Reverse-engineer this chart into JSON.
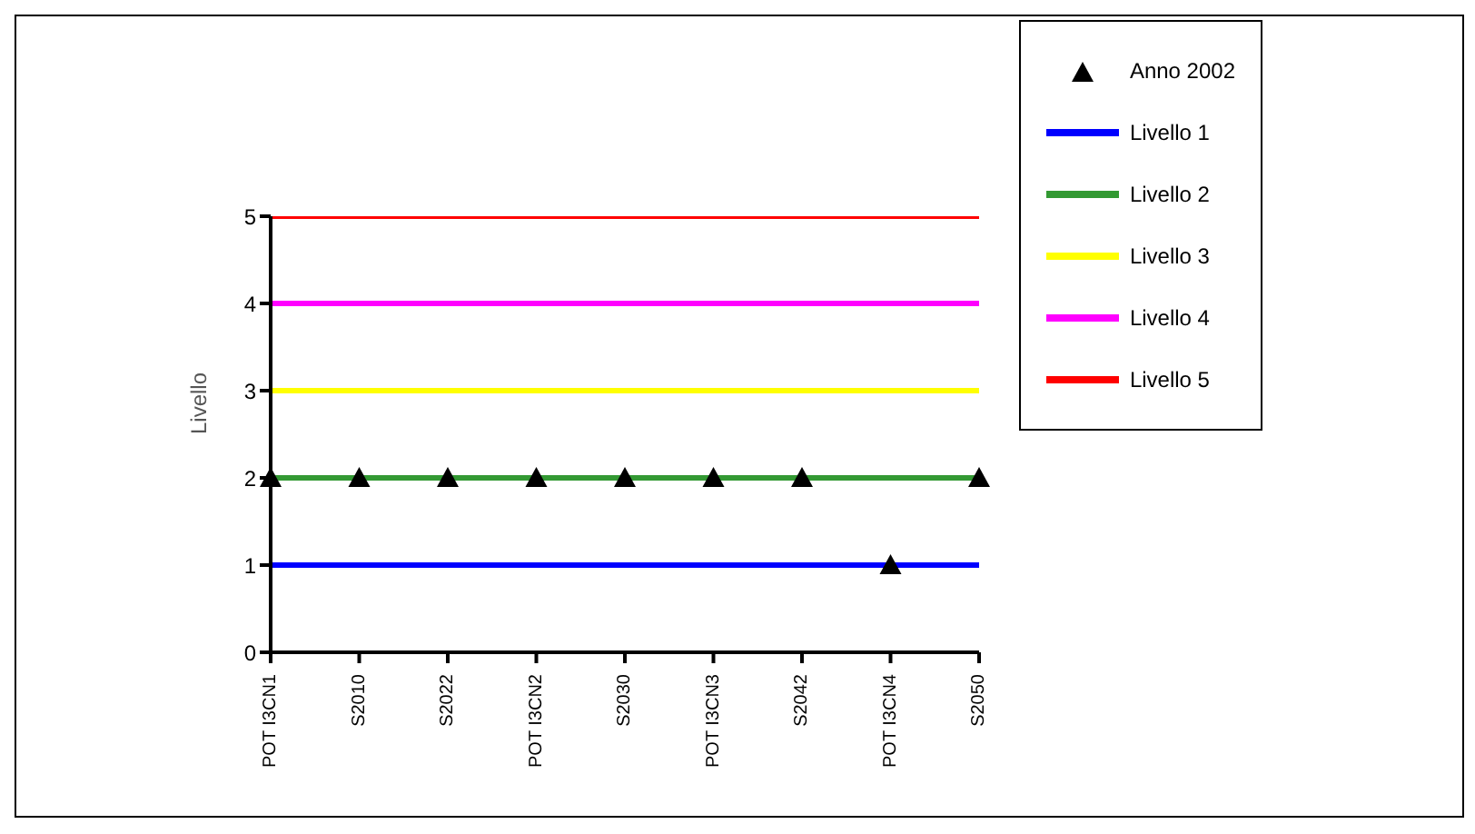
{
  "chart_data": {
    "type": "line",
    "ylabel": "Livello",
    "categories": [
      "POT I3CN1",
      "S2010",
      "S2022",
      "POT I3CN2",
      "S2030",
      "POT I3CN3",
      "S2042",
      "POT I3CN4",
      "S2050"
    ],
    "ylim": [
      0,
      5
    ],
    "yticks": [
      0,
      1,
      2,
      3,
      4,
      5
    ],
    "grid": false,
    "legend": "top right",
    "series": [
      {
        "name": "Anno 2002",
        "type": "scatter",
        "marker": "triangle",
        "color": "#000000",
        "values": [
          2,
          2,
          2,
          2,
          2,
          2,
          2,
          1,
          2
        ]
      },
      {
        "name": "Livello 1",
        "color": "#0000ff",
        "values": [
          1,
          1,
          1,
          1,
          1,
          1,
          1,
          1,
          1
        ]
      },
      {
        "name": "Livello 2",
        "color": "#339933",
        "values": [
          2,
          2,
          2,
          2,
          2,
          2,
          2,
          2,
          2
        ]
      },
      {
        "name": "Livello 3",
        "color": "#ffff00",
        "values": [
          3,
          3,
          3,
          3,
          3,
          3,
          3,
          3,
          3
        ]
      },
      {
        "name": "Livello 4",
        "color": "#ff00ff",
        "values": [
          4,
          4,
          4,
          4,
          4,
          4,
          4,
          4,
          4
        ]
      },
      {
        "name": "Livello 5",
        "color": "#ff0000",
        "values": [
          5,
          5,
          5,
          5,
          5,
          5,
          5,
          5,
          5
        ]
      }
    ]
  }
}
